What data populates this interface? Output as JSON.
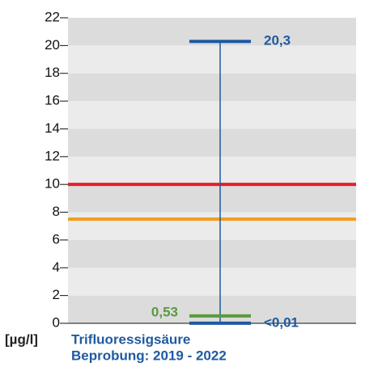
{
  "chart_data": {
    "type": "range",
    "values": [
      20.3,
      0.53,
      0.01
    ],
    "value_labels": [
      "20,3",
      "0,53",
      "<0,01"
    ],
    "colors": [
      "#1f5aa0",
      "#5a9a3c",
      "#1f5aa0"
    ],
    "reference_lines": [
      {
        "value": 10,
        "color": "#e3202a"
      },
      {
        "value": 7.5,
        "color": "#f39c1a"
      }
    ],
    "ylim": [
      0,
      22
    ],
    "yticks": [
      0,
      2,
      4,
      6,
      8,
      10,
      12,
      14,
      16,
      18,
      20,
      22
    ],
    "band_colors": [
      "#ebebeb",
      "#dcdcdc"
    ],
    "unit": "[µg/l]",
    "title": "Trifluoressigsäure",
    "subtitle": "Beprobung: 2019 - 2022"
  }
}
